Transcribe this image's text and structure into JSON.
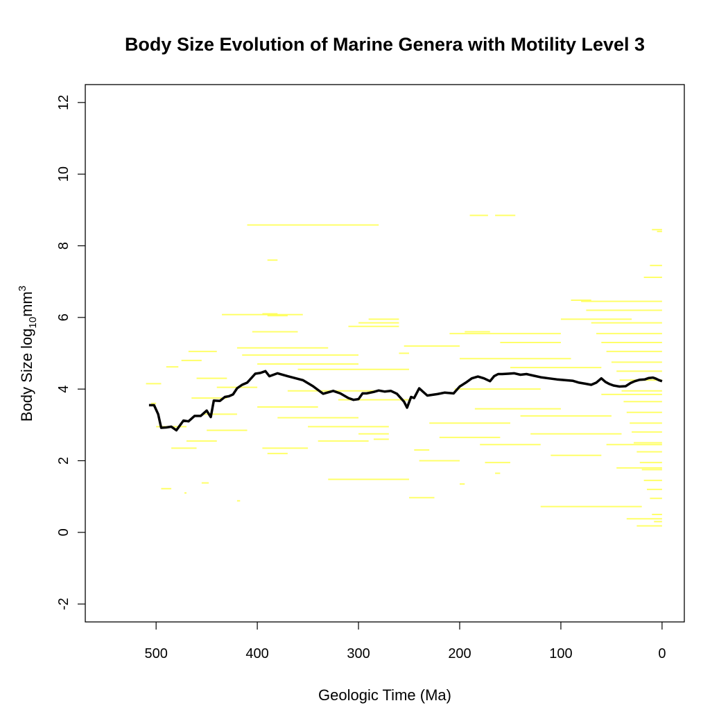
{
  "chart_data": {
    "type": "line",
    "title": "Body Size Evolution of Marine Genera with Motility Level 3",
    "xlabel": "Geologic Time (Ma)",
    "ylabel": "Body Size log",
    "ylabel_subscript": "10",
    "ylabel_unit": "mm",
    "ylabel_superscript": "3",
    "xlim": [
      570,
      -22
    ],
    "ylim": [
      -2.5,
      12.5
    ],
    "x_ticks": [
      500,
      400,
      300,
      200,
      100,
      0
    ],
    "y_ticks": [
      -2,
      0,
      2,
      4,
      6,
      8,
      10,
      12
    ],
    "colors": {
      "ranges": "#ffff4d",
      "mean": "#000000"
    },
    "series": [
      {
        "type": "segments",
        "description_role": "genus stratigraphic ranges",
        "segments": [
          [
            510,
            495,
            4.15
          ],
          [
            490,
            478,
            4.62
          ],
          [
            475,
            455,
            4.8
          ],
          [
            468,
            440,
            5.05
          ],
          [
            460,
            430,
            4.3
          ],
          [
            455,
            448,
            1.38
          ],
          [
            472,
            470,
            1.1
          ],
          [
            495,
            485,
            1.22
          ],
          [
            505,
            500,
            3.6
          ],
          [
            500,
            470,
            2.95
          ],
          [
            485,
            460,
            2.35
          ],
          [
            470,
            440,
            2.55
          ],
          [
            465,
            430,
            3.75
          ],
          [
            455,
            420,
            3.3
          ],
          [
            450,
            410,
            2.85
          ],
          [
            440,
            400,
            4.05
          ],
          [
            420,
            417,
            0.88
          ],
          [
            400,
            300,
            4.7
          ],
          [
            395,
            380,
            6.1
          ],
          [
            390,
            370,
            6.05
          ],
          [
            390,
            380,
            7.6
          ],
          [
            410,
            280,
            8.58
          ],
          [
            435,
            355,
            6.08
          ],
          [
            420,
            330,
            5.15
          ],
          [
            415,
            300,
            4.95
          ],
          [
            405,
            360,
            5.6
          ],
          [
            400,
            340,
            3.5
          ],
          [
            395,
            350,
            2.35
          ],
          [
            390,
            370,
            2.2
          ],
          [
            380,
            300,
            3.2
          ],
          [
            370,
            280,
            3.95
          ],
          [
            360,
            250,
            4.55
          ],
          [
            350,
            270,
            2.95
          ],
          [
            340,
            290,
            2.55
          ],
          [
            330,
            250,
            1.48
          ],
          [
            320,
            250,
            3.7
          ],
          [
            300,
            270,
            2.75
          ],
          [
            300,
            260,
            5.85
          ],
          [
            310,
            260,
            5.75
          ],
          [
            290,
            260,
            5.95
          ],
          [
            285,
            270,
            2.6
          ],
          [
            260,
            250,
            5.0
          ],
          [
            255,
            200,
            5.2
          ],
          [
            250,
            225,
            0.97
          ],
          [
            245,
            230,
            2.3
          ],
          [
            240,
            200,
            2.0
          ],
          [
            230,
            150,
            3.05
          ],
          [
            220,
            160,
            2.65
          ],
          [
            210,
            100,
            5.55
          ],
          [
            205,
            120,
            4.0
          ],
          [
            200,
            90,
            4.85
          ],
          [
            195,
            170,
            5.6
          ],
          [
            190,
            172,
            8.85
          ],
          [
            165,
            145,
            8.85
          ],
          [
            185,
            100,
            3.45
          ],
          [
            180,
            120,
            2.45
          ],
          [
            175,
            150,
            1.95
          ],
          [
            165,
            160,
            1.65
          ],
          [
            200,
            195,
            1.35
          ],
          [
            160,
            100,
            5.3
          ],
          [
            150,
            60,
            4.6
          ],
          [
            140,
            50,
            3.25
          ],
          [
            130,
            40,
            2.75
          ],
          [
            120,
            20,
            0.72
          ],
          [
            110,
            60,
            2.15
          ],
          [
            100,
            30,
            5.95
          ],
          [
            90,
            70,
            6.48
          ],
          [
            80,
            0,
            6.45
          ],
          [
            75,
            0,
            6.2
          ],
          [
            70,
            0,
            5.85
          ],
          [
            65,
            0,
            5.55
          ],
          [
            60,
            0,
            5.3
          ],
          [
            55,
            0,
            5.05
          ],
          [
            50,
            0,
            4.75
          ],
          [
            45,
            0,
            4.5
          ],
          [
            42,
            0,
            4.25
          ],
          [
            40,
            0,
            3.95
          ],
          [
            38,
            0,
            3.65
          ],
          [
            35,
            0,
            3.35
          ],
          [
            32,
            0,
            3.05
          ],
          [
            30,
            0,
            2.8
          ],
          [
            28,
            0,
            2.5
          ],
          [
            25,
            0,
            2.25
          ],
          [
            22,
            0,
            1.95
          ],
          [
            20,
            0,
            1.75
          ],
          [
            18,
            0,
            1.45
          ],
          [
            15,
            0,
            1.2
          ],
          [
            12,
            0,
            0.95
          ],
          [
            10,
            0,
            0.5
          ],
          [
            8,
            0,
            0.3
          ],
          [
            25,
            0,
            0.18
          ],
          [
            10,
            0,
            8.45
          ],
          [
            12,
            0,
            7.45
          ],
          [
            18,
            0,
            7.12
          ],
          [
            35,
            0,
            0.38
          ],
          [
            45,
            0,
            1.8
          ],
          [
            55,
            0,
            2.45
          ],
          [
            60,
            0,
            3.85
          ],
          [
            5,
            0,
            8.4
          ]
        ]
      },
      {
        "type": "line",
        "description_role": "mean body size",
        "x": [
          507,
          502,
          498,
          495,
          490,
          485,
          480,
          473,
          468,
          462,
          456,
          450,
          446,
          443,
          437,
          432,
          428,
          424,
          420,
          415,
          410,
          402,
          397,
          392,
          388,
          380,
          370,
          355,
          345,
          335,
          325,
          318,
          310,
          305,
          300,
          296,
          292,
          285,
          280,
          274,
          268,
          262,
          255,
          252,
          248,
          245,
          240,
          232,
          222,
          215,
          206,
          200,
          194,
          188,
          182,
          176,
          170,
          166,
          162,
          158,
          152,
          146,
          140,
          134,
          128,
          120,
          112,
          104,
          96,
          88,
          82,
          76,
          70,
          65,
          60,
          56,
          52,
          48,
          42,
          36,
          31,
          27,
          22,
          17,
          13,
          9,
          6,
          3,
          0
        ],
        "y": [
          3.55,
          3.55,
          3.3,
          2.92,
          2.93,
          2.95,
          2.85,
          3.12,
          3.1,
          3.25,
          3.25,
          3.4,
          3.22,
          3.68,
          3.67,
          3.78,
          3.8,
          3.85,
          4.02,
          4.12,
          4.18,
          4.43,
          4.45,
          4.5,
          4.36,
          4.44,
          4.36,
          4.25,
          4.08,
          3.87,
          3.95,
          3.88,
          3.75,
          3.7,
          3.72,
          3.88,
          3.88,
          3.92,
          3.96,
          3.93,
          3.95,
          3.87,
          3.65,
          3.48,
          3.78,
          3.75,
          4.02,
          3.82,
          3.86,
          3.9,
          3.88,
          4.07,
          4.18,
          4.3,
          4.35,
          4.3,
          4.22,
          4.36,
          4.42,
          4.42,
          4.43,
          4.44,
          4.4,
          4.42,
          4.38,
          4.33,
          4.3,
          4.27,
          4.25,
          4.23,
          4.18,
          4.15,
          4.12,
          4.18,
          4.3,
          4.2,
          4.14,
          4.1,
          4.07,
          4.08,
          4.17,
          4.22,
          4.26,
          4.27,
          4.31,
          4.32,
          4.29,
          4.25,
          4.22
        ]
      }
    ]
  }
}
